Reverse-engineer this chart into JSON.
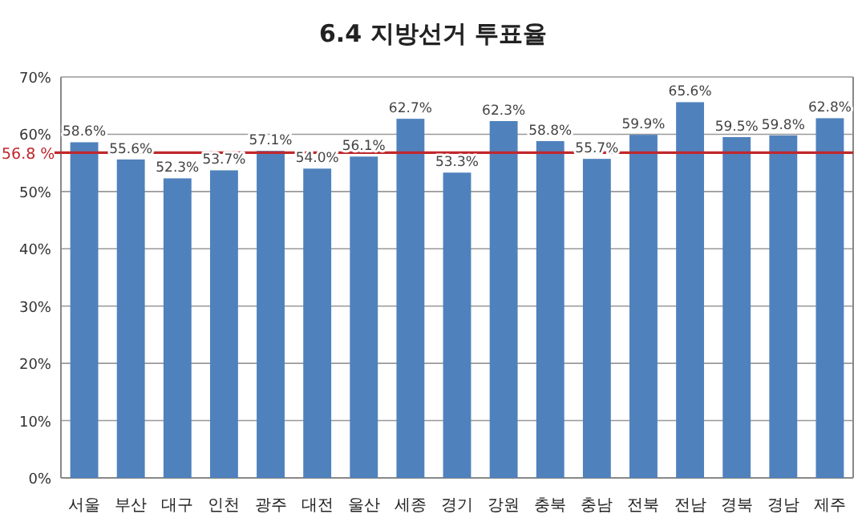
{
  "chart_data": {
    "type": "bar",
    "title": "6.4 지방선거 투표율",
    "categories": [
      "서울",
      "부산",
      "대구",
      "인천",
      "광주",
      "대전",
      "울산",
      "세종",
      "경기",
      "강원",
      "충북",
      "충남",
      "전북",
      "전남",
      "경북",
      "경남",
      "제주"
    ],
    "values": [
      58.6,
      55.6,
      52.3,
      53.7,
      57.1,
      54.0,
      56.1,
      62.7,
      53.3,
      62.3,
      58.8,
      55.7,
      59.9,
      65.6,
      59.5,
      59.8,
      62.8
    ],
    "value_labels": [
      "58.6%",
      "55.6%",
      "52.3%",
      "53.7%",
      "57.1%",
      "54.0%",
      "56.1%",
      "62.7%",
      "53.3%",
      "62.3%",
      "58.8%",
      "55.7%",
      "59.9%",
      "65.6%",
      "59.5%",
      "59.8%",
      "62.8%"
    ],
    "color": "#4f81bd",
    "ylim": [
      0,
      70
    ],
    "yticks": [
      {
        "value": 0,
        "label": "0%"
      },
      {
        "value": 10,
        "label": "10%"
      },
      {
        "value": 20,
        "label": "20%"
      },
      {
        "value": 30,
        "label": "30%"
      },
      {
        "value": 40,
        "label": "40%"
      },
      {
        "value": 50,
        "label": "50%"
      },
      {
        "value": 60,
        "label": "60%"
      },
      {
        "value": 70,
        "label": "70%"
      }
    ],
    "grid": "y",
    "ref_lines": [
      {
        "axis": "y",
        "value": 56.8,
        "label": "56.8 %",
        "color": "#c0282d"
      }
    ]
  }
}
